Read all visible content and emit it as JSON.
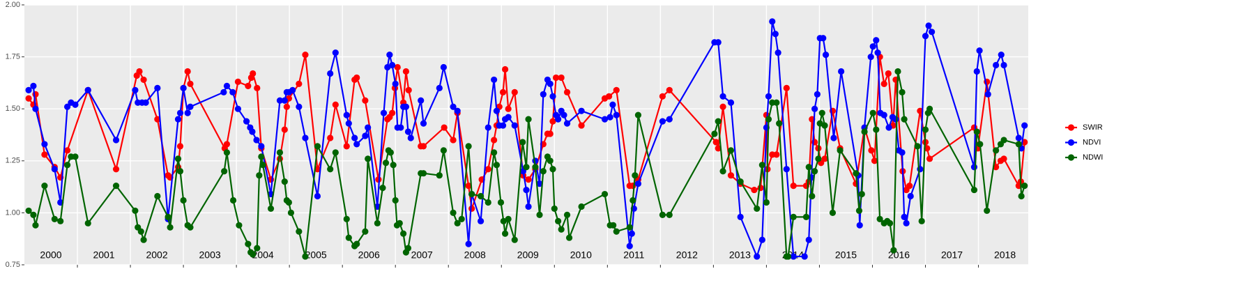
{
  "chart_data": {
    "type": "line",
    "xlim": [
      2000,
      2018.94
    ],
    "xticks": [
      2001,
      2002,
      2003,
      2004,
      2005,
      2006,
      2007,
      2008,
      2009,
      2010,
      2011,
      2012,
      2013,
      2014,
      2015,
      2016,
      2017,
      2018
    ],
    "ylim": [
      0.75,
      2.0
    ],
    "yticks": [
      0.75,
      {
        "value": 1,
        "label": "1.00"
      },
      1.25,
      {
        "value": 1.5,
        "label": "1.50"
      },
      1.75,
      {
        "value": 2,
        "label": "2.00"
      }
    ],
    "grid": true,
    "legend": "right",
    "annotations": [
      {
        "text": "2000",
        "x": 2000.5
      },
      {
        "text": "2001",
        "x": 2001.5
      },
      {
        "text": "2002",
        "x": 2002.5
      },
      {
        "text": "2003",
        "x": 2003.5
      },
      {
        "text": "2004",
        "x": 2004.5
      },
      {
        "text": "2005",
        "x": 2005.5
      },
      {
        "text": "2006",
        "x": 2006.5
      },
      {
        "text": "2007",
        "x": 2007.5
      },
      {
        "text": "2008",
        "x": 2008.5
      },
      {
        "text": "2009",
        "x": 2009.5
      },
      {
        "text": "2010",
        "x": 2010.5
      },
      {
        "text": "2011",
        "x": 2011.5
      },
      {
        "text": "2012",
        "x": 2012.5
      },
      {
        "text": "2013",
        "x": 2013.5
      },
      {
        "text": "2014",
        "x": 2014.5
      },
      {
        "text": "2015",
        "x": 2015.5
      },
      {
        "text": "2016",
        "x": 2016.5
      },
      {
        "text": "2017",
        "x": 2017.5
      },
      {
        "text": "2018",
        "x": 2018.5
      }
    ],
    "series": [
      {
        "name": "SWIR",
        "color": "#ff0000",
        "x": [
          2000.08,
          2000.17,
          2000.21,
          2000.38,
          2000.57,
          2000.68,
          2000.81,
          2001.2,
          2001.73,
          2002.12,
          2002.17,
          2002.25,
          2002.51,
          2002.71,
          2002.75,
          2002.9,
          2002.94,
          2003.0,
          2003.08,
          2003.13,
          2003.78,
          2003.82,
          2004.03,
          2004.22,
          2004.28,
          2004.31,
          2004.39,
          2004.47,
          2004.65,
          2004.82,
          2004.91,
          2004.95,
          2004.99,
          2005.18,
          2005.3,
          2005.53,
          2005.77,
          2005.87,
          2006.08,
          2006.23,
          2006.27,
          2006.43,
          2006.68,
          2006.85,
          2006.89,
          2006.94,
          2006.99,
          2007.04,
          2007.15,
          2007.2,
          2007.25,
          2007.48,
          2007.53,
          2007.92,
          2008.09,
          2008.17,
          2008.38,
          2008.44,
          2008.63,
          2008.75,
          2008.86,
          2008.91,
          2008.96,
          2009.03,
          2009.07,
          2009.13,
          2009.25,
          2009.41,
          2009.51,
          2009.64,
          2009.79,
          2009.87,
          2009.92,
          2009.97,
          2010.03,
          2010.13,
          2010.24,
          2010.51,
          2010.95,
          2011.03,
          2011.17,
          2011.42,
          2011.48,
          2011.58,
          2012.04,
          2012.17,
          2013.05,
          2013.09,
          2013.18,
          2013.33,
          2013.51,
          2013.77,
          2013.89,
          2014.0,
          2014.02,
          2014.11,
          2014.19,
          2014.38,
          2014.51,
          2014.75,
          2014.8,
          2014.86,
          2014.91,
          2014.98,
          2015.03,
          2015.1,
          2015.25,
          2015.39,
          2015.69,
          2015.85,
          2015.98,
          2016.04,
          2016.14,
          2016.22,
          2016.3,
          2016.39,
          2016.44,
          2016.57,
          2016.64,
          2016.7,
          2016.9,
          2017.0,
          2017.03,
          2017.08,
          2017.92,
          2017.99,
          2018.16,
          2018.33,
          2018.42,
          2018.48,
          2018.76,
          2018.8,
          2018.87
        ],
        "values": [
          1.55,
          1.52,
          1.57,
          1.28,
          1.22,
          1.17,
          1.3,
          1.59,
          1.21,
          1.66,
          1.68,
          1.64,
          1.45,
          1.18,
          1.17,
          1.22,
          1.32,
          1.6,
          1.68,
          1.62,
          1.31,
          1.33,
          1.63,
          1.61,
          1.65,
          1.67,
          1.6,
          1.31,
          1.16,
          1.26,
          1.4,
          1.51,
          1.55,
          1.62,
          1.76,
          1.21,
          1.36,
          1.52,
          1.32,
          1.64,
          1.65,
          1.54,
          1.16,
          1.45,
          1.46,
          1.48,
          1.6,
          1.7,
          1.53,
          1.68,
          1.59,
          1.32,
          1.32,
          1.41,
          1.35,
          1.48,
          1.13,
          1.02,
          1.16,
          1.21,
          1.35,
          1.42,
          1.51,
          1.58,
          1.69,
          1.5,
          1.58,
          1.18,
          1.16,
          1.21,
          1.33,
          1.38,
          1.38,
          1.44,
          1.65,
          1.65,
          1.58,
          1.42,
          1.55,
          1.56,
          1.59,
          1.13,
          1.13,
          1.16,
          1.56,
          1.59,
          1.34,
          1.31,
          1.51,
          1.18,
          1.14,
          1.11,
          1.12,
          1.47,
          1.21,
          1.28,
          1.28,
          1.6,
          1.13,
          1.13,
          1.15,
          1.45,
          1.34,
          1.31,
          1.24,
          1.26,
          1.49,
          1.31,
          1.14,
          1.41,
          1.3,
          1.25,
          1.75,
          1.62,
          1.67,
          1.42,
          1.64,
          1.2,
          1.11,
          1.13,
          1.49,
          1.34,
          1.31,
          1.26,
          1.41,
          1.31,
          1.63,
          1.22,
          1.25,
          1.26,
          1.13,
          1.15,
          1.34
        ]
      },
      {
        "name": "NDVI",
        "color": "#0000ff",
        "x": [
          2000.08,
          2000.17,
          2000.21,
          2000.38,
          2000.57,
          2000.68,
          2000.81,
          2000.88,
          2000.96,
          2001.2,
          2001.73,
          2002.09,
          2002.14,
          2002.22,
          2002.29,
          2002.51,
          2002.71,
          2002.9,
          2002.94,
          2003.0,
          2003.08,
          2003.13,
          2003.76,
          2003.82,
          2003.93,
          2004.03,
          2004.19,
          2004.26,
          2004.3,
          2004.38,
          2004.47,
          2004.65,
          2004.82,
          2004.91,
          2004.95,
          2004.99,
          2005.06,
          2005.18,
          2005.3,
          2005.53,
          2005.77,
          2005.87,
          2006.08,
          2006.12,
          2006.23,
          2006.27,
          2006.43,
          2006.48,
          2006.66,
          2006.78,
          2006.85,
          2006.89,
          2006.94,
          2007.0,
          2007.04,
          2007.1,
          2007.15,
          2007.2,
          2007.24,
          2007.29,
          2007.48,
          2007.53,
          2007.83,
          2007.91,
          2008.09,
          2008.17,
          2008.38,
          2008.44,
          2008.61,
          2008.75,
          2008.86,
          2008.91,
          2008.96,
          2009.03,
          2009.07,
          2009.13,
          2009.25,
          2009.41,
          2009.47,
          2009.51,
          2009.64,
          2009.72,
          2009.79,
          2009.87,
          2009.92,
          2009.97,
          2010.03,
          2010.07,
          2010.13,
          2010.18,
          2010.24,
          2010.51,
          2010.95,
          2011.05,
          2011.1,
          2011.17,
          2011.42,
          2011.46,
          2011.5,
          2011.58,
          2012.04,
          2012.17,
          2013.02,
          2013.09,
          2013.18,
          2013.33,
          2013.51,
          2013.82,
          2013.92,
          2014.0,
          2014.04,
          2014.11,
          2014.17,
          2014.22,
          2014.38,
          2014.51,
          2014.72,
          2014.8,
          2014.85,
          2014.91,
          2014.96,
          2015.01,
          2015.07,
          2015.12,
          2015.27,
          2015.41,
          2015.73,
          2015.76,
          2015.85,
          2015.97,
          2016.01,
          2016.07,
          2016.1,
          2016.15,
          2016.22,
          2016.31,
          2016.38,
          2016.44,
          2016.5,
          2016.56,
          2016.6,
          2016.64,
          2016.72,
          2016.9,
          2017.0,
          2017.06,
          2017.12,
          2017.92,
          2017.97,
          2018.02,
          2018.18,
          2018.33,
          2018.43,
          2018.48,
          2018.76,
          2018.81,
          2018.87
        ],
        "values": [
          1.59,
          1.61,
          1.5,
          1.33,
          1.21,
          1.05,
          1.51,
          1.53,
          1.52,
          1.59,
          1.35,
          1.59,
          1.53,
          1.53,
          1.53,
          1.6,
          0.97,
          1.45,
          1.48,
          1.6,
          1.48,
          1.51,
          1.58,
          1.61,
          1.58,
          1.5,
          1.44,
          1.41,
          1.39,
          1.35,
          1.32,
          1.09,
          1.54,
          1.54,
          1.58,
          1.58,
          1.59,
          1.51,
          1.36,
          1.08,
          1.67,
          1.77,
          1.47,
          1.43,
          1.36,
          1.33,
          1.37,
          1.41,
          1.03,
          1.48,
          1.7,
          1.76,
          1.71,
          1.62,
          1.41,
          1.41,
          1.51,
          1.51,
          1.39,
          1.36,
          1.54,
          1.43,
          1.6,
          1.7,
          1.51,
          1.49,
          0.85,
          1.09,
          0.96,
          1.41,
          1.64,
          1.49,
          1.42,
          1.42,
          1.45,
          1.46,
          1.42,
          1.2,
          1.11,
          1.03,
          1.25,
          1.14,
          1.57,
          1.64,
          1.62,
          1.56,
          1.47,
          1.45,
          1.49,
          1.47,
          1.43,
          1.49,
          1.45,
          1.46,
          1.52,
          1.47,
          0.84,
          0.9,
          1.02,
          1.14,
          1.44,
          1.45,
          1.82,
          1.82,
          1.56,
          1.53,
          0.98,
          0.79,
          0.87,
          1.41,
          1.56,
          1.92,
          1.86,
          1.77,
          1.21,
          0.79,
          0.79,
          0.87,
          1.17,
          1.5,
          1.57,
          1.84,
          1.84,
          1.76,
          1.36,
          1.68,
          1.18,
          0.94,
          1.41,
          1.75,
          1.8,
          1.83,
          1.77,
          1.48,
          1.47,
          1.41,
          1.46,
          1.45,
          1.3,
          1.29,
          0.98,
          0.95,
          1.08,
          1.21,
          1.85,
          1.9,
          1.87,
          1.22,
          1.68,
          1.78,
          1.57,
          1.71,
          1.76,
          1.71,
          1.36,
          1.31,
          1.42
        ]
      },
      {
        "name": "NDWI",
        "color": "#006400",
        "x": [
          2000.08,
          2000.17,
          2000.21,
          2000.38,
          2000.57,
          2000.68,
          2000.81,
          2000.88,
          2000.96,
          2001.2,
          2001.73,
          2002.09,
          2002.14,
          2002.2,
          2002.25,
          2002.51,
          2002.71,
          2002.75,
          2002.9,
          2002.94,
          2003.0,
          2003.08,
          2003.13,
          2003.77,
          2003.82,
          2003.94,
          2004.05,
          2004.22,
          2004.27,
          2004.31,
          2004.39,
          2004.43,
          2004.47,
          2004.5,
          2004.65,
          2004.82,
          2004.91,
          2004.95,
          2004.99,
          2005.03,
          2005.18,
          2005.3,
          2005.53,
          2005.77,
          2005.87,
          2006.08,
          2006.12,
          2006.23,
          2006.27,
          2006.43,
          2006.48,
          2006.66,
          2006.76,
          2006.82,
          2006.87,
          2006.91,
          2006.96,
          2007.0,
          2007.03,
          2007.08,
          2007.15,
          2007.2,
          2007.24,
          2007.48,
          2007.53,
          2007.83,
          2007.91,
          2008.09,
          2008.17,
          2008.25,
          2008.38,
          2008.44,
          2008.61,
          2008.75,
          2008.86,
          2008.91,
          2008.99,
          2009.04,
          2009.07,
          2009.13,
          2009.25,
          2009.4,
          2009.47,
          2009.51,
          2009.64,
          2009.72,
          2009.79,
          2009.87,
          2009.92,
          2009.97,
          2010.0,
          2010.07,
          2010.13,
          2010.24,
          2010.28,
          2010.51,
          2010.95,
          2011.05,
          2011.11,
          2011.17,
          2011.42,
          2011.48,
          2011.52,
          2011.58,
          2012.04,
          2012.17,
          2013.02,
          2013.09,
          2013.18,
          2013.33,
          2013.51,
          2013.82,
          2013.92,
          2014.0,
          2014.04,
          2014.11,
          2014.19,
          2014.24,
          2014.38,
          2014.41,
          2014.51,
          2014.75,
          2014.8,
          2014.86,
          2014.91,
          2014.98,
          2015.01,
          2015.05,
          2015.1,
          2015.25,
          2015.39,
          2015.69,
          2015.75,
          2015.8,
          2015.85,
          2016.01,
          2016.07,
          2016.14,
          2016.22,
          2016.28,
          2016.33,
          2016.4,
          2016.48,
          2016.56,
          2016.6,
          2016.85,
          2016.93,
          2017.0,
          2017.05,
          2017.08,
          2017.92,
          2017.97,
          2018.03,
          2018.16,
          2018.33,
          2018.42,
          2018.48,
          2018.76,
          2018.81,
          2018.87
        ],
        "values": [
          1.01,
          0.99,
          0.94,
          1.13,
          0.97,
          0.96,
          1.23,
          1.27,
          1.27,
          0.95,
          1.13,
          1.01,
          0.93,
          0.91,
          0.87,
          1.08,
          0.98,
          0.93,
          1.26,
          1.2,
          1.06,
          0.94,
          0.93,
          1.2,
          1.29,
          1.06,
          0.94,
          0.85,
          0.81,
          0.8,
          0.83,
          1.18,
          1.27,
          1.23,
          1.02,
          1.29,
          1.15,
          1.06,
          1.05,
          1.0,
          0.91,
          0.79,
          1.32,
          1.21,
          1.29,
          0.97,
          0.88,
          0.84,
          0.85,
          0.91,
          1.26,
          0.95,
          1.12,
          1.24,
          1.3,
          1.29,
          1.23,
          1.06,
          0.94,
          0.95,
          0.9,
          0.81,
          0.83,
          1.19,
          1.19,
          1.18,
          1.3,
          1.0,
          0.95,
          0.97,
          1.32,
          1.09,
          1.08,
          1.05,
          1.29,
          1.23,
          1.05,
          0.96,
          0.9,
          0.97,
          0.87,
          1.34,
          1.22,
          1.45,
          1.22,
          0.99,
          1.2,
          1.27,
          1.25,
          1.21,
          1.02,
          0.96,
          0.92,
          0.99,
          0.88,
          1.03,
          1.09,
          0.94,
          0.94,
          0.91,
          0.93,
          1.06,
          1.18,
          1.47,
          0.99,
          0.99,
          1.38,
          1.44,
          1.2,
          1.3,
          1.15,
          1.02,
          1.23,
          1.05,
          1.45,
          1.53,
          1.53,
          1.43,
          0.79,
          0.79,
          0.98,
          0.98,
          1.22,
          1.08,
          1.2,
          1.26,
          1.43,
          1.48,
          1.42,
          1.0,
          1.3,
          1.19,
          1.01,
          1.09,
          1.39,
          1.48,
          1.4,
          0.97,
          0.95,
          0.96,
          0.95,
          0.82,
          1.68,
          1.58,
          1.45,
          1.32,
          0.96,
          1.4,
          1.48,
          1.5,
          1.11,
          1.39,
          1.33,
          1.01,
          1.3,
          1.33,
          1.35,
          1.33,
          1.08,
          1.13
        ]
      }
    ]
  }
}
